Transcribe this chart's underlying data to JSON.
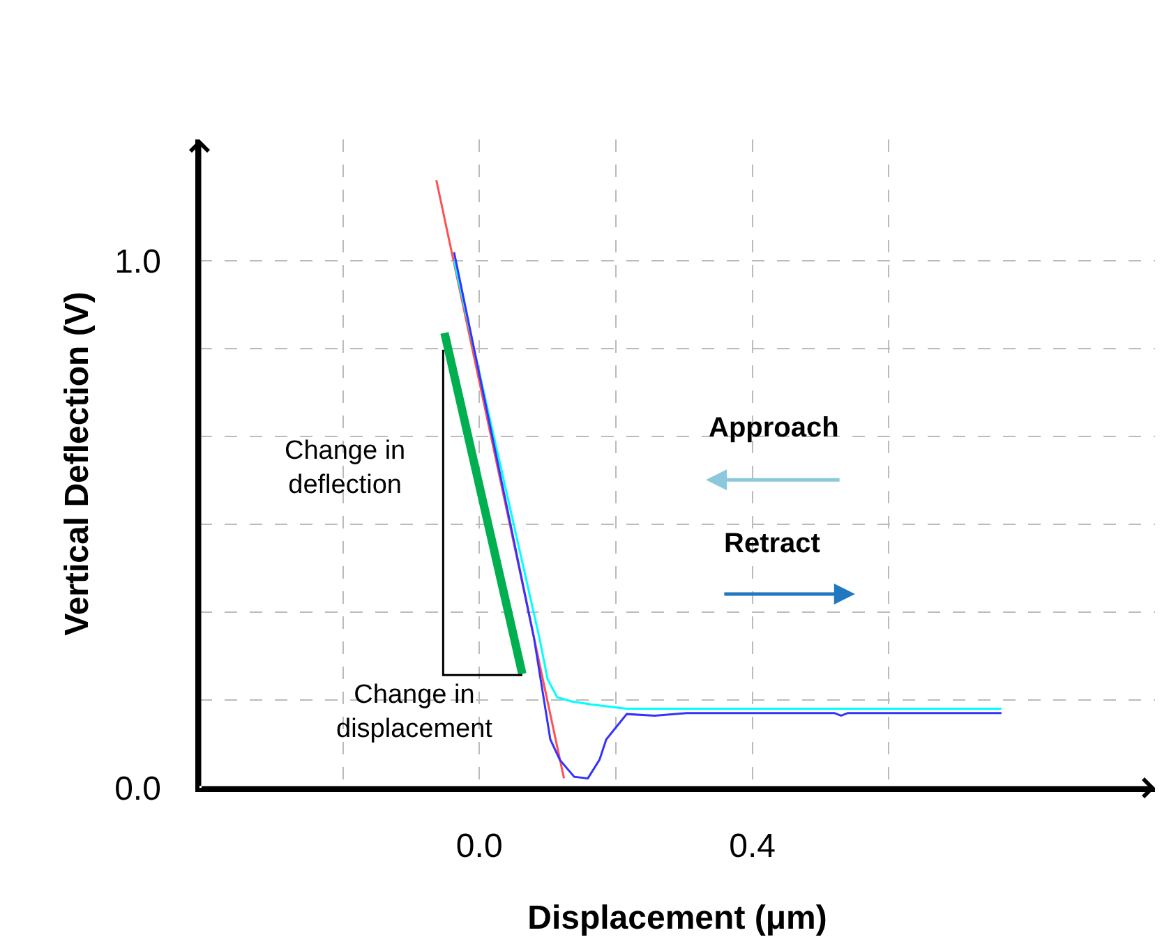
{
  "chart_data": {
    "type": "line",
    "xlabel": "Displacement (μm)",
    "ylabel": "Vertical Deflection (V)",
    "xlim": [
      -0.41,
      0.99
    ],
    "ylim": [
      0,
      1.23
    ],
    "xticks": [
      {
        "value": -0.2,
        "label": null
      },
      {
        "value": 0,
        "label": "0.0"
      },
      {
        "value": 0.2,
        "label": null
      },
      {
        "value": 0.4,
        "label": "0.4"
      },
      {
        "value": 0.6,
        "label": null
      }
    ],
    "yticks": [
      {
        "value": 0,
        "label": "0.0"
      },
      {
        "value": 0.167,
        "label": null
      },
      {
        "value": 0.333,
        "label": null
      },
      {
        "value": 0.5,
        "label": null
      },
      {
        "value": 0.667,
        "label": null
      },
      {
        "value": 0.833,
        "label": null
      },
      {
        "value": 1.0,
        "label": "1.0"
      }
    ],
    "grid": true,
    "marker": "none",
    "line_style": "solid",
    "series": [
      {
        "color": "#ff5050",
        "x": [
          -0.063,
          0.124
        ],
        "values": [
          1.153,
          0.018
        ]
      },
      {
        "color": "#00ffff",
        "x": [
          -0.037,
          0.088,
          0.1,
          0.114,
          0.135,
          0.165,
          0.216,
          0.765
        ],
        "values": [
          1.0,
          0.285,
          0.206,
          0.172,
          0.164,
          0.158,
          0.15,
          0.15
        ]
      },
      {
        "color": "#3333ff",
        "x": [
          -0.037,
          0.08,
          0.104,
          0.118,
          0.139,
          0.159,
          0.176,
          0.186,
          0.216,
          0.257,
          0.304,
          0.52,
          0.53,
          0.54,
          0.765
        ],
        "values": [
          1.016,
          0.285,
          0.092,
          0.053,
          0.021,
          0.018,
          0.053,
          0.092,
          0.14,
          0.137,
          0.142,
          0.142,
          0.137,
          0.142,
          0.142
        ]
      },
      {
        "color": "#00b050",
        "x": [
          -0.051,
          0.063
        ],
        "values": [
          0.863,
          0.216
        ]
      },
      {
        "color": "#000000",
        "x": [
          -0.053,
          -0.053,
          0.063
        ],
        "values": [
          0.831,
          0.214,
          0.214
        ]
      }
    ],
    "annotations": [
      "Change in\ndeflection",
      "Change in\ndisplacement",
      "Approach",
      "Retract"
    ]
  }
}
